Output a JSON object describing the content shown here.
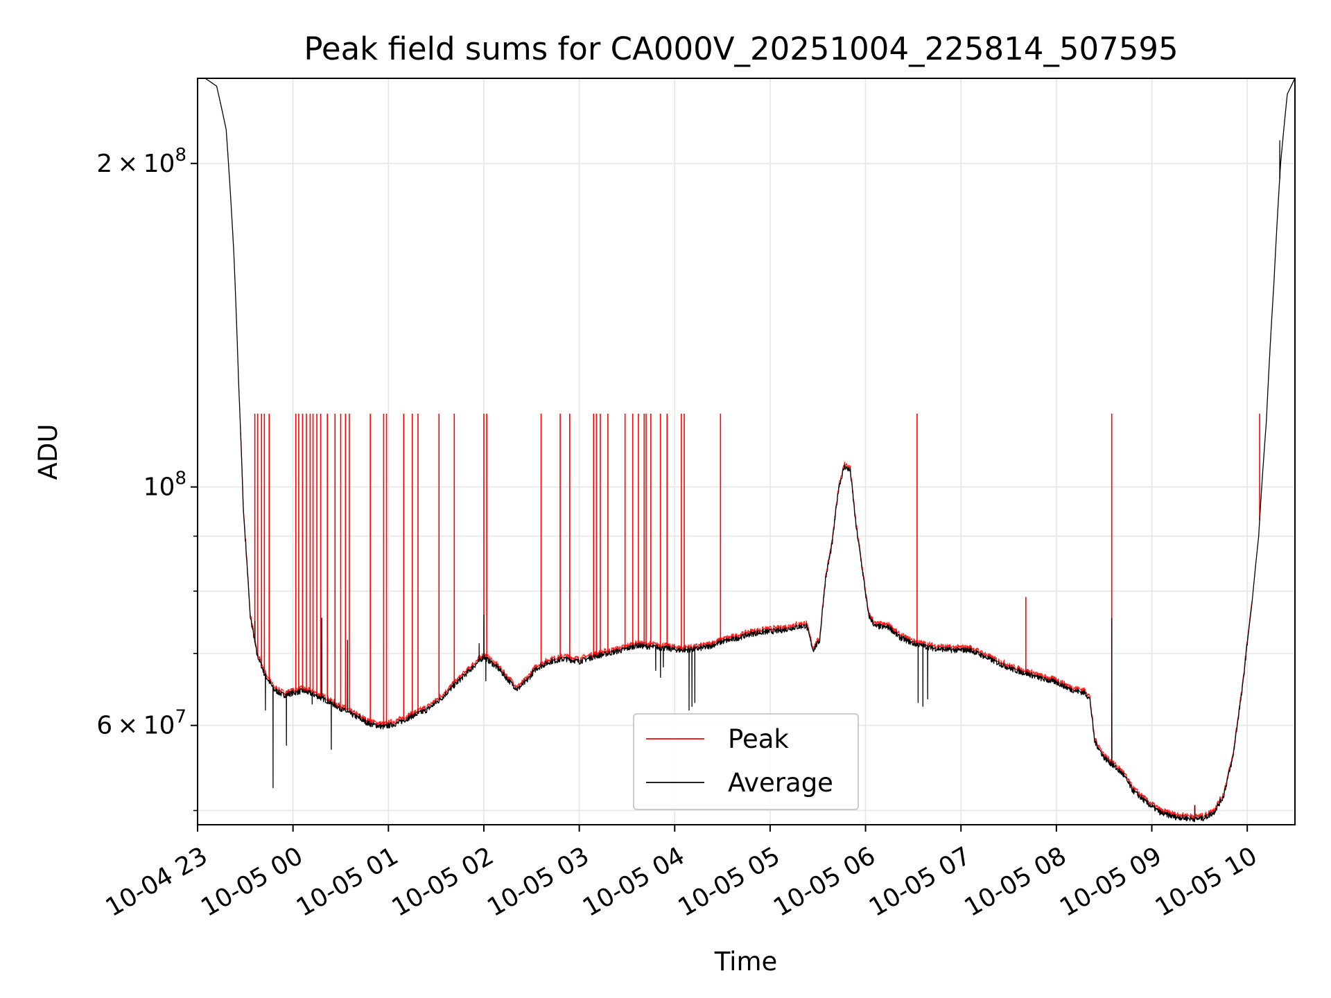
{
  "chart_data": {
    "type": "line",
    "title": "Peak field sums for CA000V_20251004_225814_507595",
    "xlabel": "Time",
    "ylabel": "ADU",
    "yscale": "log",
    "ylim": [
      48500000,
      240000000
    ],
    "xlim_hours": [
      0,
      11.5
    ],
    "x_ticks": [
      {
        "h": 0,
        "label": "10-04 23"
      },
      {
        "h": 1,
        "label": "10-05 00"
      },
      {
        "h": 2,
        "label": "10-05 01"
      },
      {
        "h": 3,
        "label": "10-05 02"
      },
      {
        "h": 4,
        "label": "10-05 03"
      },
      {
        "h": 5,
        "label": "10-05 04"
      },
      {
        "h": 6,
        "label": "10-05 05"
      },
      {
        "h": 7,
        "label": "10-05 06"
      },
      {
        "h": 8,
        "label": "10-05 07"
      },
      {
        "h": 9,
        "label": "10-05 08"
      },
      {
        "h": 10,
        "label": "10-05 09"
      },
      {
        "h": 11,
        "label": "10-05 10"
      }
    ],
    "y_major_ticks": [
      {
        "value": 60000000,
        "mantissa": "6",
        "exponent": "7",
        "times": "×",
        "base": "10"
      },
      {
        "value": 100000000,
        "mantissa": "",
        "exponent": "8",
        "times": "",
        "base": "10"
      },
      {
        "value": 200000000,
        "mantissa": "2",
        "exponent": "8",
        "times": "×",
        "base": "10"
      }
    ],
    "y_minor_ticks": [
      50000000,
      70000000,
      80000000,
      90000000,
      300000000
    ],
    "grid": true,
    "legend_position": "bottom-center",
    "series": [
      {
        "name": "Peak",
        "color": "#ff0000",
        "width": 1.3
      },
      {
        "name": "Average",
        "color": "#000000",
        "width": 1.3
      }
    ],
    "avg_profile": [
      [
        0.0,
        240
      ],
      [
        0.08,
        240
      ],
      [
        0.2,
        236
      ],
      [
        0.3,
        215
      ],
      [
        0.38,
        165
      ],
      [
        0.43,
        125
      ],
      [
        0.48,
        95
      ],
      [
        0.55,
        76
      ],
      [
        0.62,
        70
      ],
      [
        0.7,
        67
      ],
      [
        0.8,
        64.8
      ],
      [
        0.9,
        64
      ],
      [
        1.0,
        64.3
      ],
      [
        1.1,
        64.6
      ],
      [
        1.2,
        64.2
      ],
      [
        1.35,
        63.3
      ],
      [
        1.5,
        62.2
      ],
      [
        1.65,
        61.2
      ],
      [
        1.8,
        60.2
      ],
      [
        1.95,
        59.8
      ],
      [
        2.1,
        60.3
      ],
      [
        2.25,
        61.2
      ],
      [
        2.4,
        62
      ],
      [
        2.55,
        63.5
      ],
      [
        2.7,
        65.5
      ],
      [
        2.85,
        67.5
      ],
      [
        3.0,
        69.5
      ],
      [
        3.15,
        67.8
      ],
      [
        3.25,
        66.2
      ],
      [
        3.35,
        64.8
      ],
      [
        3.45,
        66
      ],
      [
        3.55,
        67.8
      ],
      [
        3.7,
        68.8
      ],
      [
        3.85,
        69.2
      ],
      [
        4.0,
        68.8
      ],
      [
        4.15,
        69.5
      ],
      [
        4.3,
        70
      ],
      [
        4.45,
        70.5
      ],
      [
        4.6,
        71.2
      ],
      [
        4.75,
        71
      ],
      [
        4.9,
        70.8
      ],
      [
        5.05,
        70.5
      ],
      [
        5.2,
        70.6
      ],
      [
        5.35,
        71
      ],
      [
        5.5,
        71.8
      ],
      [
        5.65,
        72.3
      ],
      [
        5.8,
        73
      ],
      [
        5.95,
        73.3
      ],
      [
        6.1,
        73.5
      ],
      [
        6.25,
        74
      ],
      [
        6.38,
        74.3
      ],
      [
        6.45,
        70.5
      ],
      [
        6.52,
        72
      ],
      [
        6.58,
        82
      ],
      [
        6.65,
        88.5
      ],
      [
        6.72,
        100
      ],
      [
        6.78,
        104.5
      ],
      [
        6.84,
        103.5
      ],
      [
        6.9,
        92
      ],
      [
        6.98,
        82
      ],
      [
        7.03,
        76
      ],
      [
        7.1,
        74.2
      ],
      [
        7.25,
        74
      ],
      [
        7.35,
        72.5
      ],
      [
        7.5,
        71.5
      ],
      [
        7.7,
        70.8
      ],
      [
        7.9,
        70.5
      ],
      [
        8.1,
        70.5
      ],
      [
        8.25,
        69.5
      ],
      [
        8.4,
        68.5
      ],
      [
        8.55,
        67.6
      ],
      [
        8.7,
        67
      ],
      [
        8.85,
        66.3
      ],
      [
        9.0,
        65.8
      ],
      [
        9.15,
        64.8
      ],
      [
        9.3,
        64.3
      ],
      [
        9.35,
        63.5
      ],
      [
        9.4,
        58
      ],
      [
        9.5,
        56
      ],
      [
        9.6,
        55
      ],
      [
        9.7,
        54
      ],
      [
        9.8,
        52.2
      ],
      [
        9.95,
        50.8
      ],
      [
        10.1,
        49.7
      ],
      [
        10.25,
        49.3
      ],
      [
        10.45,
        49.1
      ],
      [
        10.55,
        49.2
      ],
      [
        10.65,
        49.8
      ],
      [
        10.75,
        51.5
      ],
      [
        10.85,
        56
      ],
      [
        10.95,
        65
      ],
      [
        11.05,
        78
      ],
      [
        11.12,
        90
      ],
      [
        11.2,
        115
      ],
      [
        11.28,
        155
      ],
      [
        11.35,
        200
      ],
      [
        11.42,
        232
      ],
      [
        11.5,
        240
      ]
    ],
    "avg_dips": [
      {
        "h": 0.71,
        "v": 62
      },
      {
        "h": 0.79,
        "v": 52.5
      },
      {
        "h": 0.93,
        "v": 57.5
      },
      {
        "h": 1.2,
        "v": 62.8
      },
      {
        "h": 1.4,
        "v": 57
      },
      {
        "h": 1.7,
        "v": 61.5
      },
      {
        "h": 3.02,
        "v": 66
      },
      {
        "h": 4.8,
        "v": 67.5
      },
      {
        "h": 4.85,
        "v": 66.5
      },
      {
        "h": 4.88,
        "v": 68
      },
      {
        "h": 5.15,
        "v": 62
      },
      {
        "h": 5.18,
        "v": 62.5
      },
      {
        "h": 5.21,
        "v": 63
      },
      {
        "h": 7.55,
        "v": 63
      },
      {
        "h": 7.6,
        "v": 62.5
      },
      {
        "h": 7.65,
        "v": 63.5
      }
    ],
    "avg_spikes": [
      {
        "h": 0.6,
        "v": 75
      },
      {
        "h": 1.3,
        "v": 75.5
      },
      {
        "h": 1.57,
        "v": 72
      },
      {
        "h": 2.95,
        "v": 71.5
      },
      {
        "h": 3.0,
        "v": 76
      },
      {
        "h": 9.58,
        "v": 75.5
      },
      {
        "h": 10.45,
        "v": 50.5
      },
      {
        "h": 11.34,
        "v": 210
      }
    ],
    "peak_spikes": [
      0.6,
      0.63,
      0.67,
      0.7,
      0.75,
      1.03,
      1.06,
      1.1,
      1.14,
      1.18,
      1.21,
      1.25,
      1.29,
      1.36,
      1.44,
      1.5,
      1.55,
      1.59,
      1.81,
      1.95,
      1.98,
      2.16,
      2.25,
      2.31,
      2.53,
      2.69,
      3.0,
      3.03,
      3.6,
      3.8,
      3.9,
      4.15,
      4.18,
      4.22,
      4.3,
      4.48,
      4.56,
      4.62,
      4.68,
      4.7,
      4.75,
      4.85,
      4.92,
      5.07,
      5.1,
      5.48,
      7.54,
      9.58,
      11.13
    ],
    "peak_spike_value": 117,
    "peak_extra_spikes": [
      {
        "h": 8.68,
        "v": 79
      },
      {
        "h": 10.45,
        "v": 50.6
      }
    ]
  },
  "legend": {
    "peak_label": "Peak",
    "average_label": "Average"
  },
  "colors": {
    "peak": "#ff0000",
    "average": "#000000",
    "grid": "#e6e6e6",
    "legend_border": "#cccccc"
  }
}
